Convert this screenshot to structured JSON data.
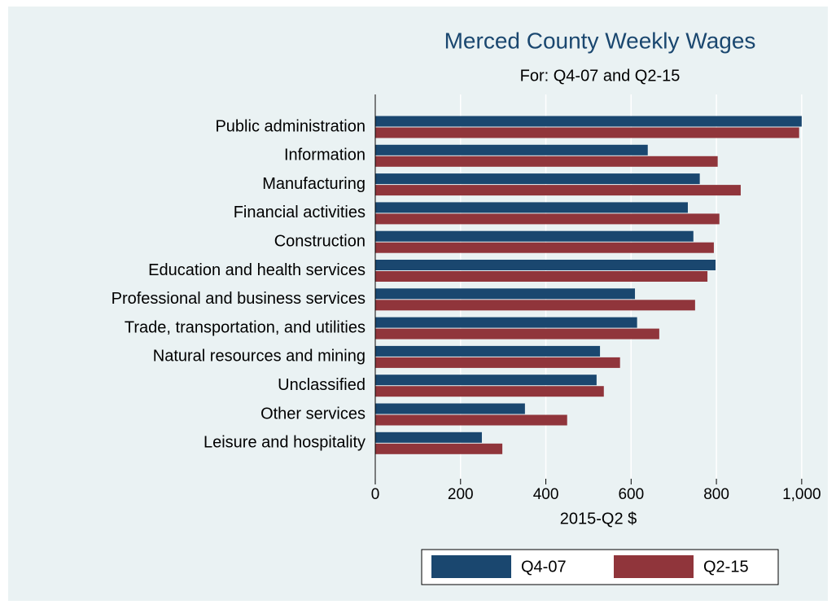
{
  "chart_data": {
    "type": "hbar",
    "title": "Merced County Weekly Wages",
    "subtitle": "For: Q4-07 and Q2-15",
    "x_label": "2015-Q2 $",
    "categories": [
      "Public administration",
      "Information",
      "Manufacturing",
      "Financial activities",
      "Construction",
      "Education and health services",
      "Professional and business services",
      "Trade, transportation, and utilities",
      "Natural resources and mining",
      "Unclassified",
      "Other services",
      "Leisure and hospitality"
    ],
    "series": [
      {
        "name": "Q4-07",
        "color": "#1a476f",
        "values": [
          1000,
          639,
          761,
          733,
          746,
          798,
          609,
          614,
          527,
          519,
          351,
          250
        ]
      },
      {
        "name": "Q2-15",
        "color": "#90353b",
        "values": [
          994,
          803,
          857,
          807,
          794,
          779,
          750,
          666,
          574,
          536,
          450,
          298
        ]
      }
    ],
    "xlim": [
      0,
      1048
    ],
    "xticks": [
      0,
      200,
      400,
      600,
      800,
      {
        "value": 1000,
        "label": "1,000"
      }
    ],
    "grid": true,
    "legend": "bottom"
  }
}
